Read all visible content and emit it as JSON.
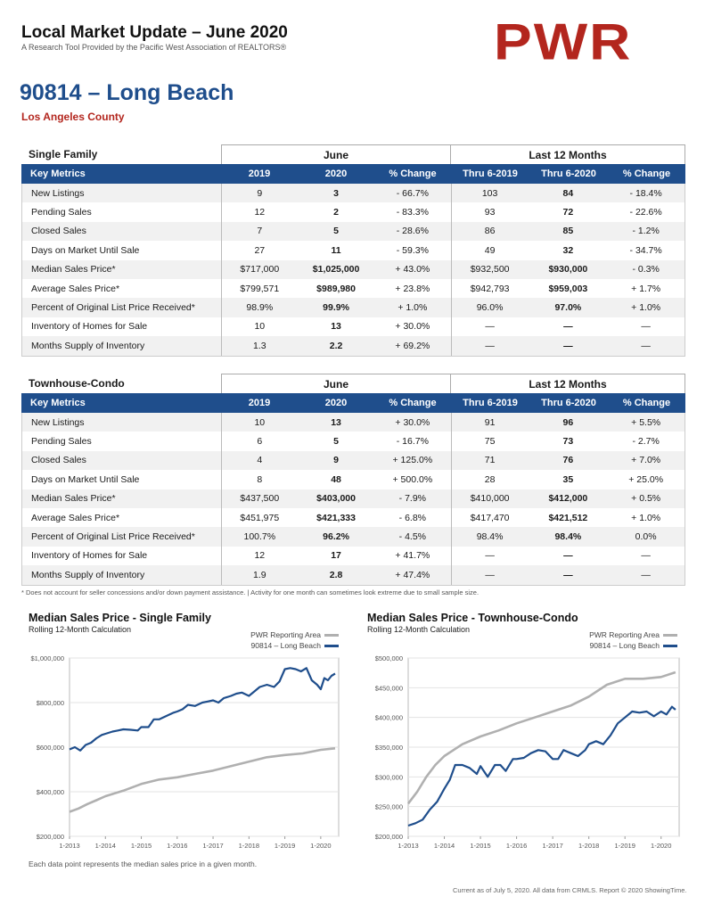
{
  "header": {
    "title": "Local Market Update – June 2020",
    "subtitle": "A Research Tool Provided by the Pacific West Association of REALTORS®",
    "logo": "PWR"
  },
  "area": {
    "title": "90814 – Long Beach",
    "county": "Los Angeles County"
  },
  "table_headers": [
    "Key Metrics",
    "2019",
    "2020",
    "% Change",
    "Thru 6-2019",
    "Thru 6-2020",
    "% Change"
  ],
  "group_labels": {
    "june": "June",
    "last12": "Last 12 Months"
  },
  "single_family": {
    "section": "Single Family",
    "rows": [
      [
        "New Listings",
        "9",
        "3",
        "- 66.7%",
        "103",
        "84",
        "- 18.4%"
      ],
      [
        "Pending Sales",
        "12",
        "2",
        "- 83.3%",
        "93",
        "72",
        "- 22.6%"
      ],
      [
        "Closed Sales",
        "7",
        "5",
        "- 28.6%",
        "86",
        "85",
        "- 1.2%"
      ],
      [
        "Days on Market Until Sale",
        "27",
        "11",
        "- 59.3%",
        "49",
        "32",
        "- 34.7%"
      ],
      [
        "Median Sales Price*",
        "$717,000",
        "$1,025,000",
        "+ 43.0%",
        "$932,500",
        "$930,000",
        "- 0.3%"
      ],
      [
        "Average Sales Price*",
        "$799,571",
        "$989,980",
        "+ 23.8%",
        "$942,793",
        "$959,003",
        "+ 1.7%"
      ],
      [
        "Percent of Original List Price Received*",
        "98.9%",
        "99.9%",
        "+ 1.0%",
        "96.0%",
        "97.0%",
        "+ 1.0%"
      ],
      [
        "Inventory of Homes for Sale",
        "10",
        "13",
        "+ 30.0%",
        "—",
        "—",
        "—"
      ],
      [
        "Months Supply of Inventory",
        "1.3",
        "2.2",
        "+ 69.2%",
        "—",
        "—",
        "—"
      ]
    ]
  },
  "townhouse": {
    "section": "Townhouse-Condo",
    "rows": [
      [
        "New Listings",
        "10",
        "13",
        "+ 30.0%",
        "91",
        "96",
        "+ 5.5%"
      ],
      [
        "Pending Sales",
        "6",
        "5",
        "- 16.7%",
        "75",
        "73",
        "- 2.7%"
      ],
      [
        "Closed Sales",
        "4",
        "9",
        "+ 125.0%",
        "71",
        "76",
        "+ 7.0%"
      ],
      [
        "Days on Market Until Sale",
        "8",
        "48",
        "+ 500.0%",
        "28",
        "35",
        "+ 25.0%"
      ],
      [
        "Median Sales Price*",
        "$437,500",
        "$403,000",
        "- 7.9%",
        "$410,000",
        "$412,000",
        "+ 0.5%"
      ],
      [
        "Average Sales Price*",
        "$451,975",
        "$421,333",
        "- 6.8%",
        "$417,470",
        "$421,512",
        "+ 1.0%"
      ],
      [
        "Percent of Original List Price Received*",
        "100.7%",
        "96.2%",
        "- 4.5%",
        "98.4%",
        "98.4%",
        "0.0%"
      ],
      [
        "Inventory of Homes for Sale",
        "12",
        "17",
        "+ 41.7%",
        "—",
        "—",
        "—"
      ],
      [
        "Months Supply of Inventory",
        "1.9",
        "2.8",
        "+ 47.4%",
        "—",
        "—",
        "—"
      ]
    ]
  },
  "footnote": "* Does not account for seller concessions and/or down payment assistance. | Activity for one month can sometimes look extreme due to small sample size.",
  "chart_note": "Each data point represents the median sales price in a given month.",
  "credit": "Current as of July 5, 2020. All data from CRMLS. Report © 2020 ShowingTime.",
  "colors": {
    "blue": "#1f4e8c",
    "gray": "#b0b0b0",
    "red": "#b3261e"
  },
  "chart_data": [
    {
      "type": "line",
      "title": "Median Sales Price - Single Family",
      "subtitle": "Rolling 12-Month Calculation",
      "x_ticks": [
        "1-2013",
        "1-2014",
        "1-2015",
        "1-2016",
        "1-2017",
        "1-2018",
        "1-2019",
        "1-2020"
      ],
      "y_ticks": [
        "$1,000,000",
        "$800,000",
        "$600,000",
        "$400,000",
        "$200,000"
      ],
      "ylim": [
        200000,
        1000000
      ],
      "xlim": [
        2013.0,
        2020.5
      ],
      "grid": true,
      "legend": "top-right",
      "series": [
        {
          "name": "PWR Reporting Area",
          "color": "#b0b0b0",
          "x": [
            2013.0,
            2013.25,
            2013.5,
            2013.75,
            2014.0,
            2014.5,
            2015.0,
            2015.5,
            2016.0,
            2016.5,
            2017.0,
            2017.5,
            2018.0,
            2018.5,
            2019.0,
            2019.5,
            2020.0,
            2020.4
          ],
          "y": [
            310000,
            325000,
            345000,
            362000,
            380000,
            405000,
            435000,
            455000,
            465000,
            480000,
            495000,
            515000,
            535000,
            555000,
            565000,
            572000,
            588000,
            595000
          ]
        },
        {
          "name": "90814 – Long Beach",
          "color": "#1f4e8c",
          "x": [
            2013.0,
            2013.15,
            2013.3,
            2013.45,
            2013.6,
            2013.75,
            2013.9,
            2014.0,
            2014.2,
            2014.35,
            2014.5,
            2014.7,
            2014.9,
            2015.0,
            2015.2,
            2015.35,
            2015.5,
            2015.7,
            2015.9,
            2016.0,
            2016.15,
            2016.3,
            2016.5,
            2016.7,
            2016.85,
            2017.0,
            2017.15,
            2017.3,
            2017.5,
            2017.65,
            2017.8,
            2018.0,
            2018.15,
            2018.3,
            2018.5,
            2018.7,
            2018.85,
            2019.0,
            2019.15,
            2019.3,
            2019.45,
            2019.6,
            2019.75,
            2019.9,
            2020.0,
            2020.1,
            2020.2,
            2020.3,
            2020.4
          ],
          "y": [
            590000,
            600000,
            585000,
            610000,
            620000,
            640000,
            655000,
            660000,
            670000,
            675000,
            680000,
            678000,
            675000,
            690000,
            690000,
            725000,
            725000,
            740000,
            755000,
            760000,
            770000,
            790000,
            785000,
            800000,
            805000,
            810000,
            800000,
            820000,
            830000,
            840000,
            845000,
            830000,
            850000,
            870000,
            880000,
            870000,
            895000,
            950000,
            955000,
            950000,
            940000,
            955000,
            900000,
            880000,
            860000,
            910000,
            900000,
            920000,
            930000
          ]
        }
      ]
    },
    {
      "type": "line",
      "title": "Median Sales Price - Townhouse-Condo",
      "subtitle": "Rolling 12-Month Calculation",
      "x_ticks": [
        "1-2013",
        "1-2014",
        "1-2015",
        "1-2016",
        "1-2017",
        "1-2018",
        "1-2019",
        "1-2020"
      ],
      "y_ticks": [
        "$500,000",
        "$450,000",
        "$400,000",
        "$350,000",
        "$300,000",
        "$250,000",
        "$200,000"
      ],
      "ylim": [
        200000,
        500000
      ],
      "xlim": [
        2013.0,
        2020.5
      ],
      "grid": true,
      "legend": "top-right",
      "series": [
        {
          "name": "PWR Reporting Area",
          "color": "#b0b0b0",
          "x": [
            2013.0,
            2013.25,
            2013.5,
            2013.75,
            2014.0,
            2014.25,
            2014.5,
            2015.0,
            2015.5,
            2016.0,
            2016.5,
            2017.0,
            2017.5,
            2018.0,
            2018.5,
            2019.0,
            2019.5,
            2020.0,
            2020.4
          ],
          "y": [
            255000,
            275000,
            300000,
            320000,
            335000,
            345000,
            355000,
            368000,
            378000,
            390000,
            400000,
            410000,
            420000,
            435000,
            455000,
            465000,
            465000,
            468000,
            476000
          ]
        },
        {
          "name": "90814 – Long Beach",
          "color": "#1f4e8c",
          "x": [
            2013.0,
            2013.2,
            2013.4,
            2013.6,
            2013.8,
            2014.0,
            2014.15,
            2014.3,
            2014.5,
            2014.7,
            2014.9,
            2015.0,
            2015.2,
            2015.4,
            2015.55,
            2015.7,
            2015.9,
            2016.0,
            2016.2,
            2016.4,
            2016.6,
            2016.8,
            2017.0,
            2017.15,
            2017.3,
            2017.5,
            2017.7,
            2017.9,
            2018.0,
            2018.2,
            2018.4,
            2018.6,
            2018.8,
            2019.0,
            2019.2,
            2019.4,
            2019.6,
            2019.8,
            2020.0,
            2020.15,
            2020.3,
            2020.4
          ],
          "y": [
            218000,
            222000,
            228000,
            245000,
            258000,
            280000,
            295000,
            320000,
            320000,
            315000,
            305000,
            318000,
            300000,
            320000,
            320000,
            310000,
            330000,
            330000,
            332000,
            340000,
            345000,
            343000,
            330000,
            330000,
            345000,
            340000,
            335000,
            345000,
            355000,
            360000,
            355000,
            370000,
            390000,
            400000,
            410000,
            408000,
            410000,
            402000,
            410000,
            405000,
            418000,
            413000
          ]
        }
      ]
    }
  ]
}
